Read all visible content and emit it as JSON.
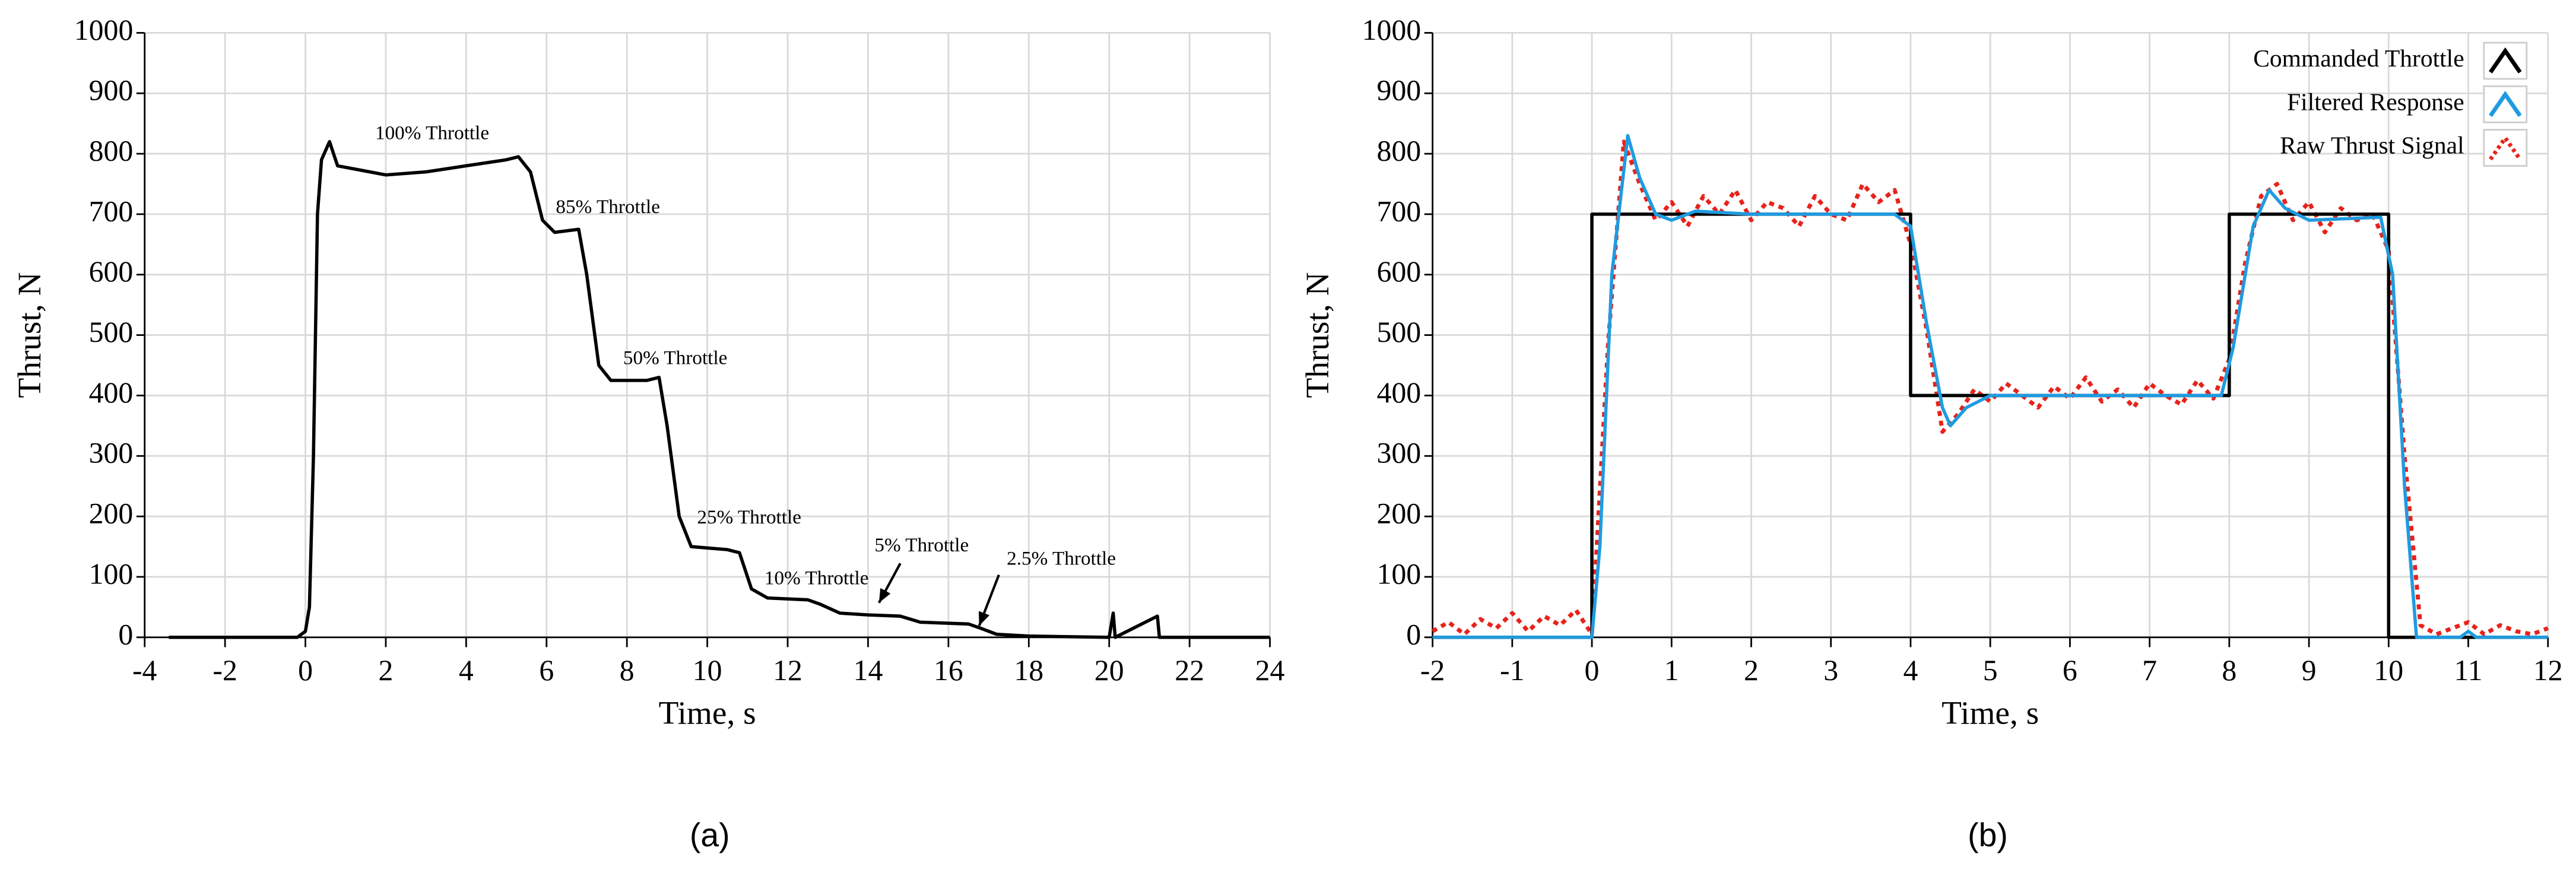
{
  "chart_data": [
    {
      "type": "line",
      "caption": "(a)",
      "xlabel": "Time, s",
      "ylabel": "Thrust, N",
      "color": "#000000",
      "grid": true,
      "xlim": [
        -4,
        24
      ],
      "xticks": [
        -4,
        -2,
        0,
        2,
        4,
        6,
        8,
        10,
        12,
        14,
        16,
        18,
        20,
        22,
        24
      ],
      "ylim": [
        0,
        1000
      ],
      "yticks": [
        0,
        100,
        200,
        300,
        400,
        500,
        600,
        700,
        800,
        900,
        1000
      ],
      "annotations": [
        "100% Throttle",
        "85% Throttle",
        "50% Throttle",
        "25% Throttle",
        "10% Throttle",
        "5% Throttle",
        "2.5% Throttle"
      ],
      "x": [
        -3.4,
        -0.2,
        0,
        0.1,
        0.2,
        0.3,
        0.4,
        0.6,
        0.8,
        1.2,
        2,
        3,
        4,
        5,
        5.3,
        5.6,
        5.9,
        6.2,
        6.8,
        7,
        7.3,
        7.6,
        8.5,
        8.8,
        9,
        9.3,
        9.6,
        10.5,
        10.8,
        11.1,
        11.5,
        12.5,
        12.8,
        13.3,
        14,
        14.8,
        15.3,
        16.5,
        16.8,
        17.2,
        18,
        20,
        20.1,
        20.15,
        21.2,
        21.25,
        24
      ],
      "values": [
        0,
        0,
        10,
        50,
        300,
        700,
        790,
        820,
        780,
        775,
        765,
        770,
        780,
        790,
        795,
        770,
        690,
        670,
        675,
        600,
        450,
        425,
        425,
        430,
        350,
        200,
        150,
        145,
        140,
        80,
        65,
        62,
        55,
        40,
        37,
        35,
        25,
        22,
        15,
        5,
        2,
        0,
        40,
        0,
        35,
        0,
        0
      ]
    },
    {
      "type": "line",
      "caption": "(b)",
      "xlabel": "Time, s",
      "ylabel": "Thrust, N",
      "grid": true,
      "legend": "upper right",
      "xlim": [
        -2,
        12
      ],
      "xticks": [
        -2,
        -1,
        0,
        1,
        2,
        3,
        4,
        5,
        6,
        7,
        8,
        9,
        10,
        11,
        12
      ],
      "ylim": [
        0,
        1000
      ],
      "yticks": [
        0,
        100,
        200,
        300,
        400,
        500,
        600,
        700,
        800,
        900,
        1000
      ],
      "series": [
        {
          "name": "Commanded Throttle",
          "color": "#000000",
          "style": "solid",
          "x": [
            -2,
            0,
            0,
            4,
            4,
            8,
            8,
            10,
            10,
            12
          ],
          "values": [
            0,
            0,
            700,
            700,
            400,
            400,
            700,
            700,
            0,
            0
          ]
        },
        {
          "name": "Filtered Response",
          "color": "#1f9be0",
          "style": "solid",
          "x": [
            -2,
            0,
            0.1,
            0.25,
            0.45,
            0.6,
            0.8,
            1,
            1.3,
            2,
            3.8,
            4,
            4.2,
            4.4,
            4.5,
            4.7,
            5,
            7.9,
            8.05,
            8.3,
            8.5,
            8.7,
            9,
            9.9,
            10.05,
            10.2,
            10.35,
            10.9,
            11,
            11.1,
            12
          ],
          "values": [
            0,
            0,
            150,
            600,
            830,
            760,
            700,
            690,
            705,
            700,
            700,
            680,
            520,
            380,
            350,
            380,
            400,
            400,
            480,
            680,
            740,
            710,
            690,
            695,
            600,
            250,
            0,
            0,
            10,
            0,
            0
          ]
        },
        {
          "name": "Raw Thrust Signal",
          "color": "#e8221b",
          "style": "dotted",
          "x": [
            -2,
            -1.8,
            -1.6,
            -1.4,
            -1.2,
            -1,
            -0.8,
            -0.6,
            -0.4,
            -0.2,
            0,
            0.2,
            0.4,
            0.6,
            0.8,
            1,
            1.2,
            1.4,
            1.6,
            1.8,
            2,
            2.2,
            2.4,
            2.6,
            2.8,
            3,
            3.2,
            3.4,
            3.6,
            3.8,
            4,
            4.2,
            4.4,
            4.6,
            4.8,
            5,
            5.2,
            5.4,
            5.6,
            5.8,
            6,
            6.2,
            6.4,
            6.6,
            6.8,
            7,
            7.2,
            7.4,
            7.6,
            7.8,
            8,
            8.2,
            8.4,
            8.6,
            8.8,
            9,
            9.2,
            9.4,
            9.6,
            9.8,
            10,
            10.2,
            10.4,
            10.6,
            10.8,
            11,
            11.2,
            11.4,
            11.6,
            11.8,
            12
          ],
          "values": [
            10,
            25,
            5,
            30,
            15,
            40,
            10,
            35,
            20,
            45,
            5,
            480,
            820,
            750,
            690,
            720,
            680,
            730,
            700,
            740,
            690,
            720,
            710,
            680,
            730,
            700,
            690,
            750,
            720,
            740,
            650,
            510,
            340,
            370,
            410,
            390,
            420,
            400,
            380,
            415,
            395,
            430,
            390,
            410,
            380,
            420,
            400,
            385,
            425,
            395,
            460,
            620,
            730,
            750,
            690,
            720,
            670,
            710,
            690,
            700,
            640,
            300,
            20,
            5,
            15,
            25,
            5,
            20,
            10,
            5,
            15
          ]
        }
      ]
    }
  ]
}
